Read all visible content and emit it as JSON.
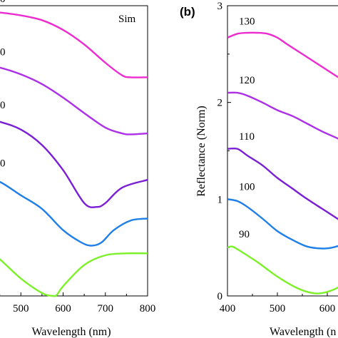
{
  "chart_data": [
    {
      "type": "line",
      "panel": "a",
      "panel_label": "",
      "annotation": "Sim",
      "xlabel": "Wavelength (nm)",
      "ylabel": "",
      "xlim": [
        400,
        800
      ],
      "ylim": [
        0,
        3
      ],
      "xticks": [
        500,
        600,
        700,
        800
      ],
      "xtick_labels": [
        "500",
        "600",
        "700",
        "800"
      ],
      "yticks": [],
      "grid": false,
      "curve_labels": [
        "0",
        "0",
        "0",
        "0"
      ],
      "series": [
        {
          "color": "#7cf12a",
          "x": [
            400,
            450,
            500,
            550,
            575,
            585,
            600,
            650,
            700,
            750,
            800
          ],
          "y": [
            0.55,
            0.38,
            0.18,
            0.03,
            0.0,
            0.01,
            0.1,
            0.32,
            0.42,
            0.44,
            0.44
          ]
        },
        {
          "color": "#1f7fe8",
          "x": [
            400,
            450,
            500,
            550,
            600,
            640,
            665,
            690,
            720,
            760,
            800
          ],
          "y": [
            1.25,
            1.18,
            1.04,
            0.9,
            0.68,
            0.56,
            0.52,
            0.55,
            0.68,
            0.78,
            0.8
          ]
        },
        {
          "color": "#7a1fd6",
          "x": [
            400,
            450,
            500,
            550,
            600,
            650,
            680,
            700,
            740,
            800
          ],
          "y": [
            1.85,
            1.8,
            1.72,
            1.56,
            1.3,
            0.96,
            0.92,
            0.96,
            1.12,
            1.2
          ]
        },
        {
          "color": "#ad30e8",
          "x": [
            400,
            450,
            500,
            550,
            600,
            650,
            700,
            740,
            760,
            800
          ],
          "y": [
            2.4,
            2.36,
            2.29,
            2.19,
            2.05,
            1.89,
            1.74,
            1.68,
            1.67,
            1.68
          ]
        },
        {
          "color": "#ec2ccf",
          "x": [
            400,
            450,
            500,
            550,
            600,
            650,
            700,
            740,
            760,
            800
          ],
          "y": [
            2.95,
            2.93,
            2.9,
            2.85,
            2.75,
            2.6,
            2.41,
            2.28,
            2.26,
            2.26
          ]
        }
      ]
    },
    {
      "type": "line",
      "panel": "b",
      "panel_label": "(b)",
      "annotation": "",
      "xlabel": "Wavelength (n",
      "ylabel": "Reflectance (Norm)",
      "xlim": [
        400,
        640
      ],
      "ylim": [
        0,
        3
      ],
      "xticks": [
        400,
        500,
        600
      ],
      "xtick_labels": [
        "400",
        "500",
        "600"
      ],
      "yticks": [
        0,
        1,
        2,
        3
      ],
      "ytick_labels": [
        "0",
        "1",
        "2",
        "3"
      ],
      "grid": false,
      "series": [
        {
          "name": "90",
          "color": "#7cf12a",
          "x": [
            400,
            410,
            430,
            460,
            500,
            540,
            570,
            590,
            610,
            630,
            640
          ],
          "y": [
            0.5,
            0.51,
            0.45,
            0.35,
            0.2,
            0.08,
            0.03,
            0.03,
            0.06,
            0.11,
            0.14
          ]
        },
        {
          "name": "100",
          "color": "#1f7fe8",
          "x": [
            400,
            420,
            440,
            470,
            500,
            530,
            560,
            590,
            610,
            630,
            640
          ],
          "y": [
            1.0,
            0.98,
            0.92,
            0.8,
            0.67,
            0.58,
            0.51,
            0.49,
            0.5,
            0.53,
            0.55
          ]
        },
        {
          "name": "110",
          "color": "#7a1fd6",
          "x": [
            400,
            420,
            440,
            470,
            500,
            530,
            560,
            590,
            620,
            640
          ],
          "y": [
            1.52,
            1.52,
            1.45,
            1.35,
            1.22,
            1.11,
            1.0,
            0.9,
            0.8,
            0.74
          ]
        },
        {
          "name": "120",
          "color": "#ad30e8",
          "x": [
            400,
            420,
            440,
            470,
            500,
            530,
            560,
            590,
            620,
            640
          ],
          "y": [
            2.1,
            2.1,
            2.07,
            2.0,
            1.92,
            1.86,
            1.78,
            1.7,
            1.63,
            1.58
          ]
        },
        {
          "name": "130",
          "color": "#ec2ccf",
          "x": [
            400,
            420,
            440,
            460,
            480,
            500,
            520,
            550,
            580,
            610,
            640
          ],
          "y": [
            2.67,
            2.71,
            2.72,
            2.72,
            2.71,
            2.67,
            2.6,
            2.5,
            2.4,
            2.3,
            2.2
          ]
        }
      ]
    }
  ]
}
